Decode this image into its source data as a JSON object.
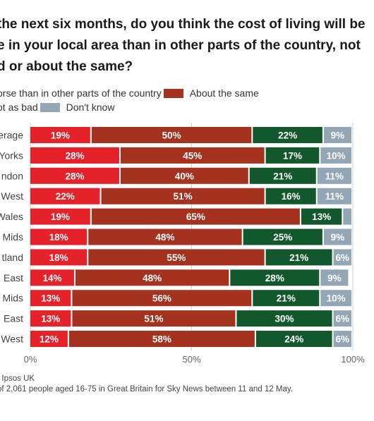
{
  "title_lines": [
    "the next six months, do you think the cost of living will be",
    "e in your local area than in other parts of the country, not",
    "d or about the same?"
  ],
  "legend_rows": [
    [
      {
        "label": "orse than in other parts of the country",
        "color": "#e5212a"
      },
      {
        "label": "About the same",
        "color": "#a5321f"
      }
    ],
    [
      {
        "label": "ot as bad",
        "color": "#12582c"
      },
      {
        "label": "Don't know",
        "color": "#92a6b6"
      }
    ]
  ],
  "source": ": Ipsos UK",
  "note": "of 2,061 people aged 16-75 in Great Britain for Sky News between 11 and 12 May.",
  "chart_data": {
    "type": "bar",
    "orientation": "horizontal",
    "stacked": true,
    "categories": [
      "erage",
      "Yorks",
      "ndon",
      "West",
      "Wales",
      "Mids",
      "tland",
      "East",
      "Mids",
      "East",
      "West"
    ],
    "series": [
      {
        "name": "orse than in other parts of the country",
        "color": "#e5212a",
        "values": [
          19,
          28,
          28,
          22,
          19,
          18,
          18,
          14,
          13,
          13,
          12
        ]
      },
      {
        "name": "About the same",
        "color": "#a5321f",
        "values": [
          50,
          45,
          40,
          51,
          65,
          48,
          55,
          48,
          56,
          51,
          58
        ]
      },
      {
        "name": "ot as bad",
        "color": "#12582c",
        "values": [
          22,
          17,
          21,
          16,
          13,
          25,
          21,
          28,
          21,
          30,
          24
        ]
      },
      {
        "name": "Don't know",
        "color": "#92a6b6",
        "values": [
          9,
          10,
          11,
          11,
          3,
          9,
          6,
          9,
          10,
          6,
          6
        ]
      }
    ],
    "value_labels": [
      [
        "19%",
        "50%",
        "22%",
        "9%"
      ],
      [
        "28%",
        "45%",
        "17%",
        "10%"
      ],
      [
        "28%",
        "40%",
        "21%",
        "11%"
      ],
      [
        "22%",
        "51%",
        "16%",
        "11%"
      ],
      [
        "19%",
        "65%",
        "13%",
        ""
      ],
      [
        "18%",
        "48%",
        "25%",
        "9%"
      ],
      [
        "18%",
        "55%",
        "21%",
        "6%"
      ],
      [
        "14%",
        "48%",
        "28%",
        "9%"
      ],
      [
        "13%",
        "56%",
        "21%",
        "10%"
      ],
      [
        "13%",
        "51%",
        "30%",
        "6%"
      ],
      [
        "12%",
        "58%",
        "24%",
        "6%"
      ]
    ],
    "x_ticks": [
      0,
      50,
      100
    ],
    "x_tick_labels": [
      "0%",
      "50%",
      "100%"
    ],
    "xlim": [
      0,
      100
    ],
    "grid": true,
    "legend_position": "top"
  }
}
